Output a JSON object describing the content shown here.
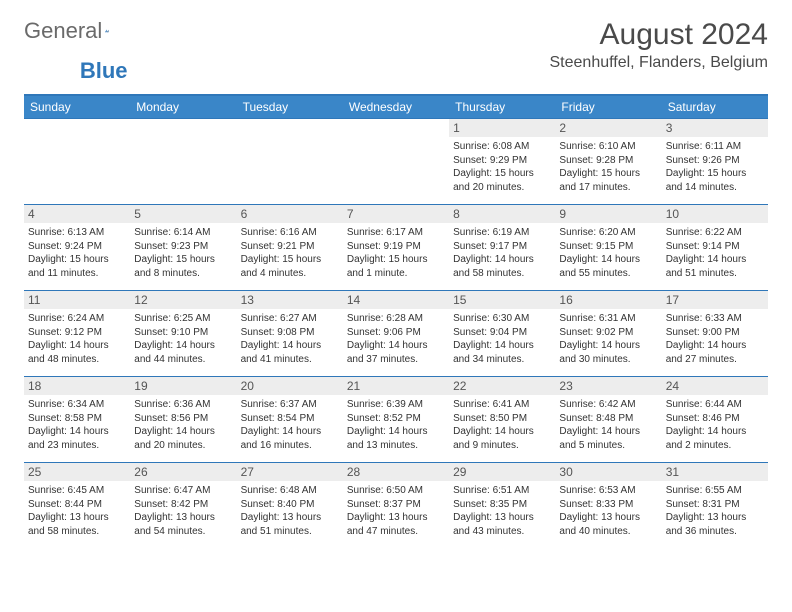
{
  "brand": {
    "part1": "General",
    "part2": "Blue"
  },
  "title": "August 2024",
  "location": "Steenhuffel, Flanders, Belgium",
  "colors": {
    "header_bg": "#3a86c8",
    "border": "#2f77b9",
    "daynum_bg": "#ededed",
    "text": "#333333",
    "page_bg": "#ffffff"
  },
  "dayHeaders": [
    "Sunday",
    "Monday",
    "Tuesday",
    "Wednesday",
    "Thursday",
    "Friday",
    "Saturday"
  ],
  "weeks": [
    [
      null,
      null,
      null,
      null,
      {
        "n": "1",
        "sr": "Sunrise: 6:08 AM",
        "ss": "Sunset: 9:29 PM",
        "dl1": "Daylight: 15 hours",
        "dl2": "and 20 minutes."
      },
      {
        "n": "2",
        "sr": "Sunrise: 6:10 AM",
        "ss": "Sunset: 9:28 PM",
        "dl1": "Daylight: 15 hours",
        "dl2": "and 17 minutes."
      },
      {
        "n": "3",
        "sr": "Sunrise: 6:11 AM",
        "ss": "Sunset: 9:26 PM",
        "dl1": "Daylight: 15 hours",
        "dl2": "and 14 minutes."
      }
    ],
    [
      {
        "n": "4",
        "sr": "Sunrise: 6:13 AM",
        "ss": "Sunset: 9:24 PM",
        "dl1": "Daylight: 15 hours",
        "dl2": "and 11 minutes."
      },
      {
        "n": "5",
        "sr": "Sunrise: 6:14 AM",
        "ss": "Sunset: 9:23 PM",
        "dl1": "Daylight: 15 hours",
        "dl2": "and 8 minutes."
      },
      {
        "n": "6",
        "sr": "Sunrise: 6:16 AM",
        "ss": "Sunset: 9:21 PM",
        "dl1": "Daylight: 15 hours",
        "dl2": "and 4 minutes."
      },
      {
        "n": "7",
        "sr": "Sunrise: 6:17 AM",
        "ss": "Sunset: 9:19 PM",
        "dl1": "Daylight: 15 hours",
        "dl2": "and 1 minute."
      },
      {
        "n": "8",
        "sr": "Sunrise: 6:19 AM",
        "ss": "Sunset: 9:17 PM",
        "dl1": "Daylight: 14 hours",
        "dl2": "and 58 minutes."
      },
      {
        "n": "9",
        "sr": "Sunrise: 6:20 AM",
        "ss": "Sunset: 9:15 PM",
        "dl1": "Daylight: 14 hours",
        "dl2": "and 55 minutes."
      },
      {
        "n": "10",
        "sr": "Sunrise: 6:22 AM",
        "ss": "Sunset: 9:14 PM",
        "dl1": "Daylight: 14 hours",
        "dl2": "and 51 minutes."
      }
    ],
    [
      {
        "n": "11",
        "sr": "Sunrise: 6:24 AM",
        "ss": "Sunset: 9:12 PM",
        "dl1": "Daylight: 14 hours",
        "dl2": "and 48 minutes."
      },
      {
        "n": "12",
        "sr": "Sunrise: 6:25 AM",
        "ss": "Sunset: 9:10 PM",
        "dl1": "Daylight: 14 hours",
        "dl2": "and 44 minutes."
      },
      {
        "n": "13",
        "sr": "Sunrise: 6:27 AM",
        "ss": "Sunset: 9:08 PM",
        "dl1": "Daylight: 14 hours",
        "dl2": "and 41 minutes."
      },
      {
        "n": "14",
        "sr": "Sunrise: 6:28 AM",
        "ss": "Sunset: 9:06 PM",
        "dl1": "Daylight: 14 hours",
        "dl2": "and 37 minutes."
      },
      {
        "n": "15",
        "sr": "Sunrise: 6:30 AM",
        "ss": "Sunset: 9:04 PM",
        "dl1": "Daylight: 14 hours",
        "dl2": "and 34 minutes."
      },
      {
        "n": "16",
        "sr": "Sunrise: 6:31 AM",
        "ss": "Sunset: 9:02 PM",
        "dl1": "Daylight: 14 hours",
        "dl2": "and 30 minutes."
      },
      {
        "n": "17",
        "sr": "Sunrise: 6:33 AM",
        "ss": "Sunset: 9:00 PM",
        "dl1": "Daylight: 14 hours",
        "dl2": "and 27 minutes."
      }
    ],
    [
      {
        "n": "18",
        "sr": "Sunrise: 6:34 AM",
        "ss": "Sunset: 8:58 PM",
        "dl1": "Daylight: 14 hours",
        "dl2": "and 23 minutes."
      },
      {
        "n": "19",
        "sr": "Sunrise: 6:36 AM",
        "ss": "Sunset: 8:56 PM",
        "dl1": "Daylight: 14 hours",
        "dl2": "and 20 minutes."
      },
      {
        "n": "20",
        "sr": "Sunrise: 6:37 AM",
        "ss": "Sunset: 8:54 PM",
        "dl1": "Daylight: 14 hours",
        "dl2": "and 16 minutes."
      },
      {
        "n": "21",
        "sr": "Sunrise: 6:39 AM",
        "ss": "Sunset: 8:52 PM",
        "dl1": "Daylight: 14 hours",
        "dl2": "and 13 minutes."
      },
      {
        "n": "22",
        "sr": "Sunrise: 6:41 AM",
        "ss": "Sunset: 8:50 PM",
        "dl1": "Daylight: 14 hours",
        "dl2": "and 9 minutes."
      },
      {
        "n": "23",
        "sr": "Sunrise: 6:42 AM",
        "ss": "Sunset: 8:48 PM",
        "dl1": "Daylight: 14 hours",
        "dl2": "and 5 minutes."
      },
      {
        "n": "24",
        "sr": "Sunrise: 6:44 AM",
        "ss": "Sunset: 8:46 PM",
        "dl1": "Daylight: 14 hours",
        "dl2": "and 2 minutes."
      }
    ],
    [
      {
        "n": "25",
        "sr": "Sunrise: 6:45 AM",
        "ss": "Sunset: 8:44 PM",
        "dl1": "Daylight: 13 hours",
        "dl2": "and 58 minutes."
      },
      {
        "n": "26",
        "sr": "Sunrise: 6:47 AM",
        "ss": "Sunset: 8:42 PM",
        "dl1": "Daylight: 13 hours",
        "dl2": "and 54 minutes."
      },
      {
        "n": "27",
        "sr": "Sunrise: 6:48 AM",
        "ss": "Sunset: 8:40 PM",
        "dl1": "Daylight: 13 hours",
        "dl2": "and 51 minutes."
      },
      {
        "n": "28",
        "sr": "Sunrise: 6:50 AM",
        "ss": "Sunset: 8:37 PM",
        "dl1": "Daylight: 13 hours",
        "dl2": "and 47 minutes."
      },
      {
        "n": "29",
        "sr": "Sunrise: 6:51 AM",
        "ss": "Sunset: 8:35 PM",
        "dl1": "Daylight: 13 hours",
        "dl2": "and 43 minutes."
      },
      {
        "n": "30",
        "sr": "Sunrise: 6:53 AM",
        "ss": "Sunset: 8:33 PM",
        "dl1": "Daylight: 13 hours",
        "dl2": "and 40 minutes."
      },
      {
        "n": "31",
        "sr": "Sunrise: 6:55 AM",
        "ss": "Sunset: 8:31 PM",
        "dl1": "Daylight: 13 hours",
        "dl2": "and 36 minutes."
      }
    ]
  ]
}
